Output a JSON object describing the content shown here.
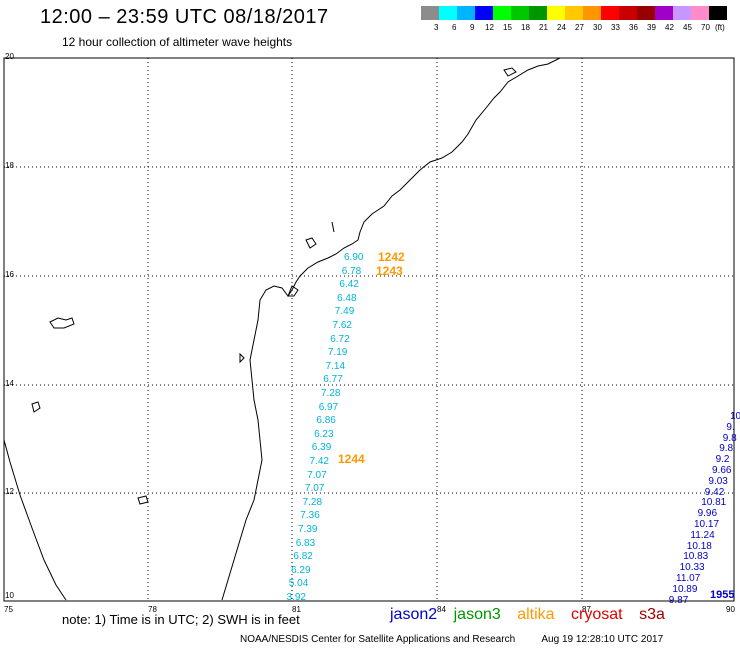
{
  "title": "12:00 – 23:59 UTC 08/18/2017",
  "subtitle": "12 hour collection of altimeter wave heights",
  "legend": {
    "unit": "(ft)",
    "colors": [
      "#8c8c8c",
      "#00ffff",
      "#00b4ff",
      "#0000ff",
      "#00ff00",
      "#00c800",
      "#009600",
      "#ffff00",
      "#ffc800",
      "#ff9600",
      "#ff0000",
      "#c80000",
      "#960000",
      "#a000c8",
      "#c896ff",
      "#ff8cc8",
      "#000000"
    ],
    "labels": [
      "3",
      "6",
      "9",
      "12",
      "15",
      "18",
      "21",
      "24",
      "27",
      "30",
      "33",
      "36",
      "39",
      "42",
      "45",
      "70"
    ]
  },
  "axes": {
    "lon_ticks": [
      "75",
      "78",
      "81",
      "84",
      "87",
      "90"
    ],
    "lat_ticks": [
      "20",
      "18",
      "16",
      "14",
      "12",
      "10"
    ]
  },
  "tracks": {
    "altika_values": [
      "6.90",
      "6.78",
      "6.42",
      "6.48",
      "7.49",
      "7.62",
      "6.72",
      "7.19",
      "7.14",
      "6.77",
      "7.28",
      "6.97",
      "6.86",
      "6.23",
      "6.39",
      "7.42",
      "7.07",
      "7.07",
      "7.28",
      "7.36",
      "7.39",
      "6.83",
      "6.82",
      "6.29",
      "5.04",
      "3.92"
    ],
    "altika_passes": [
      "1242",
      "1243",
      "1244"
    ],
    "jason2_values": [
      "10",
      "9.",
      "9.8",
      "9.8",
      "9.2",
      "9.66",
      "9.03",
      "9.42",
      "10.81",
      "9.96",
      "10.17",
      "11.24",
      "10.18",
      "10.83",
      "10.33",
      "11.07",
      "10.89",
      "9.87"
    ],
    "jason2_pass": "1955"
  },
  "colors": {
    "altika_values": "#00b4d8",
    "altika_pass": "#ff9900",
    "jason2": "#0000c8",
    "jason3": "#009600",
    "altika": "#ff9900",
    "cryosat": "#e00000",
    "s3a": "#a00000"
  },
  "note": "note:  1) Time is in UTC;  2) SWH is in feet",
  "missions": [
    "jason2",
    "jason3",
    "altika",
    "cryosat",
    "s3a"
  ],
  "footer": {
    "agency": "NOAA/NESDIS Center for Satellite Applications and Research",
    "timestamp": "Aug 19 12:28:10 UTC 2017"
  }
}
